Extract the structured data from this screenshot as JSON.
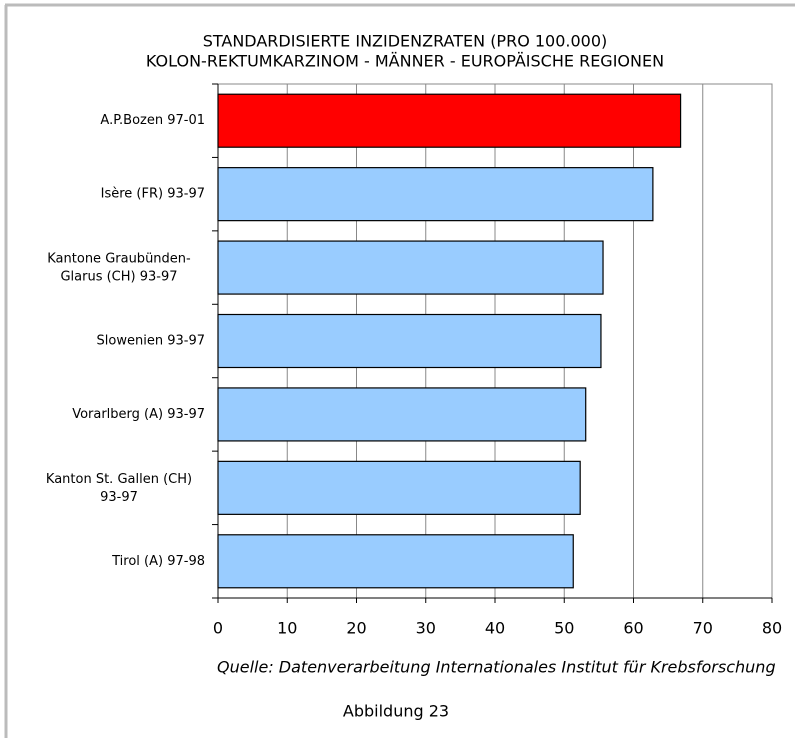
{
  "chart_data": {
    "type": "bar",
    "orientation": "horizontal",
    "title": "STANDARDISIERTE INZIDENZRATEN (PRO 100.000)",
    "subtitle": "KOLON-REKTUMKARZINOM - MÄNNER - EUROPÄISCHE REGIONEN",
    "categories": [
      "A.P.Bozen 97-01",
      "Isère (FR) 93-97",
      "Kantone Graubünden-\nGlarus (CH) 93-97",
      "Slowenien 93-97",
      "Vorarlberg (A) 93-97",
      "Kanton St. Gallen (CH)\n93-97",
      "Tirol (A) 97-98"
    ],
    "values": [
      66.8,
      62.8,
      55.6,
      55.3,
      53.1,
      52.3,
      51.3
    ],
    "colors": [
      "#ff0000",
      "#99ccff",
      "#99ccff",
      "#99ccff",
      "#99ccff",
      "#99ccff",
      "#99ccff"
    ],
    "xlim": [
      0,
      80
    ],
    "xticks": [
      0,
      10,
      20,
      30,
      40,
      50,
      60,
      70,
      80
    ],
    "grid": true,
    "source": "Quelle: Datenverarbeitung Internationales Institut für Krebsforschung",
    "caption": "Abbildung 23"
  }
}
